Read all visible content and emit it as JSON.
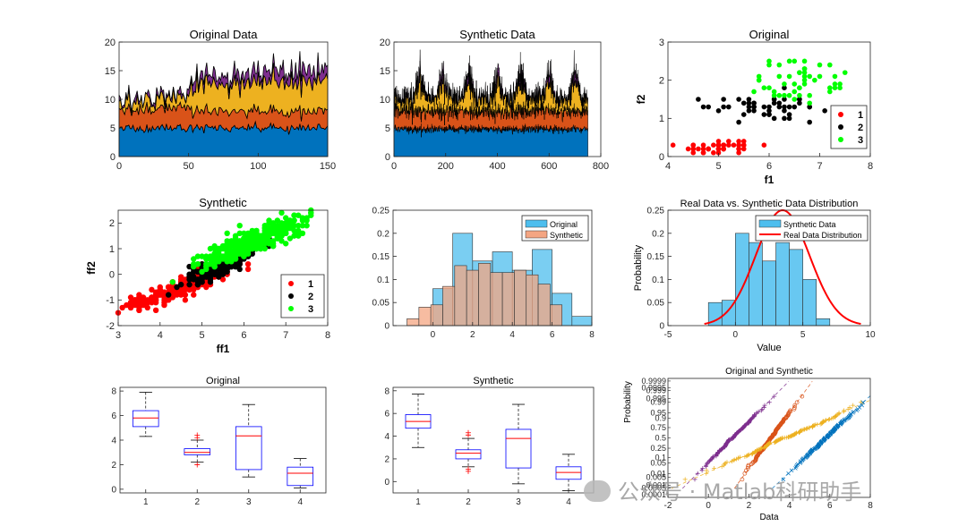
{
  "watermark": "公众号 · Matlab科研助手",
  "colors": {
    "blue": "#0072BD",
    "orange": "#D95319",
    "yellow": "#EDB120",
    "purple": "#7E2F8E",
    "red": "#FF0000",
    "green": "#00FF00",
    "black": "#000000",
    "hist_blue": "#4DBEEE",
    "hist_orange": "#F4A582",
    "box": "#0000FF",
    "median": "#FF0000"
  },
  "chart_data": [
    {
      "id": "p1",
      "type": "area",
      "title": "Original Data",
      "xlim": [
        0,
        150
      ],
      "ylim": [
        0,
        20
      ],
      "xticks": [
        0,
        50,
        100,
        150
      ],
      "yticks": [
        0,
        5,
        10,
        15,
        20
      ],
      "layer_means": [
        {
          "x": [
            0,
            50,
            51,
            150
          ],
          "v": [
            5,
            5,
            5,
            5
          ]
        },
        {
          "x": [
            0,
            50,
            51,
            150
          ],
          "v": [
            3.2,
            3.6,
            3.0,
            2.9
          ]
        },
        {
          "x": [
            0,
            50,
            51,
            150
          ],
          "v": [
            1.5,
            1.6,
            4.4,
            5.6
          ]
        },
        {
          "x": [
            0,
            50,
            51,
            150
          ],
          "v": [
            0.3,
            0.3,
            1.4,
            2.1
          ]
        }
      ],
      "noise": [
        0.4,
        0.4,
        0.8,
        0.6
      ]
    },
    {
      "id": "p2",
      "type": "area",
      "title": "Synthetic Data",
      "xlim": [
        0,
        800
      ],
      "ylim": [
        0,
        20
      ],
      "xticks": [
        0,
        200,
        400,
        600,
        800
      ],
      "yticks": [
        0,
        5,
        10,
        15,
        20
      ],
      "n": 750,
      "layer_means": [
        {
          "x": [
            0,
            750
          ],
          "v": [
            4.8,
            4.8
          ]
        },
        {
          "x": [
            0,
            750
          ],
          "v": [
            3.1,
            3.1
          ]
        },
        {
          "x": [
            0,
            750
          ],
          "v": [
            2.0,
            2.0
          ]
        },
        {
          "x": [
            0,
            750
          ],
          "v": [
            0.2,
            0.2
          ]
        }
      ],
      "bursts": [
        100,
        190,
        290,
        400,
        490,
        600,
        700
      ],
      "noise": [
        0.5,
        0.6,
        0.8,
        0.5
      ]
    },
    {
      "id": "p3",
      "type": "scatter",
      "title": "Original",
      "xlabel": "f1",
      "ylabel": "f2",
      "xlim": [
        4,
        8
      ],
      "ylim": [
        0,
        3
      ],
      "xticks": [
        4,
        5,
        6,
        7,
        8
      ],
      "yticks": [
        0,
        1,
        2,
        3
      ],
      "legend": [
        "1",
        "2",
        "3"
      ],
      "series": [
        {
          "name": "1",
          "cx": 5.0,
          "cy": 0.25,
          "sx": 0.35,
          "sy": 0.1,
          "n": 50
        },
        {
          "name": "2",
          "cx": 5.9,
          "cy": 1.3,
          "sx": 0.5,
          "sy": 0.2,
          "n": 50
        },
        {
          "name": "3",
          "cx": 6.6,
          "cy": 2.0,
          "sx": 0.6,
          "sy": 0.27,
          "n": 50
        }
      ]
    },
    {
      "id": "p4",
      "type": "scatter",
      "title": "Synthetic",
      "xlabel": "ff1",
      "ylabel": "ff2",
      "xlim": [
        3,
        8
      ],
      "ylim": [
        -2,
        2.5
      ],
      "xticks": [
        3,
        4,
        5,
        6,
        7,
        8
      ],
      "yticks": [
        -2,
        -1,
        0,
        1,
        2
      ],
      "legend": [
        "1",
        "2",
        "3"
      ],
      "series": [
        {
          "name": "1",
          "cx": 4.5,
          "cy": -0.5,
          "sx": 0.55,
          "sy": 0.35,
          "n": 260
        },
        {
          "name": "2",
          "cx": 5.4,
          "cy": 0.3,
          "sx": 0.5,
          "sy": 0.4,
          "n": 160
        },
        {
          "name": "3",
          "cx": 6.2,
          "cy": 1.3,
          "sx": 0.6,
          "sy": 0.45,
          "n": 360
        }
      ]
    },
    {
      "id": "p5",
      "type": "histogram",
      "xlim": [
        -2,
        8
      ],
      "ylim": [
        0,
        0.25
      ],
      "xticks": [
        0,
        2,
        4,
        6,
        8
      ],
      "yticks": [
        0,
        0.05,
        0.1,
        0.15,
        0.2,
        0.25
      ],
      "legend": [
        "Original",
        "Synthetic"
      ],
      "original": {
        "edges": [
          0,
          1,
          2,
          3,
          4,
          5,
          6,
          7,
          8
        ],
        "values": [
          0.08,
          0.2,
          0.14,
          0.16,
          0.12,
          0.165,
          0.07,
          0.02
        ]
      },
      "synthetic": {
        "edges": [
          -1.3,
          -0.7,
          -0.1,
          0.5,
          1.1,
          1.7,
          2.3,
          2.9,
          3.5,
          4.1,
          4.7,
          5.3,
          5.9,
          6.5
        ],
        "values": [
          0.015,
          0.04,
          0.045,
          0.085,
          0.13,
          0.12,
          0.135,
          0.115,
          0.115,
          0.12,
          0.11,
          0.09,
          0.045
        ]
      }
    },
    {
      "id": "p6",
      "type": "histogram_fit",
      "title": "Real Data vs. Synthetic Data Distribution",
      "xlabel": "Value",
      "ylabel": "Probability",
      "xlim": [
        -5,
        10
      ],
      "ylim": [
        0,
        0.25
      ],
      "xticks": [
        -5,
        0,
        5,
        10
      ],
      "yticks": [
        0,
        0.05,
        0.1,
        0.15,
        0.2,
        0.25
      ],
      "legend": [
        "Synthetic Data",
        "Real Data Distribution"
      ],
      "edges": [
        -2,
        -1,
        0,
        1,
        2,
        3,
        4,
        5,
        6,
        7
      ],
      "values": [
        0.05,
        0.055,
        0.2,
        0.18,
        0.14,
        0.18,
        0.165,
        0.1,
        0.015
      ],
      "fit": {
        "mean": 3.5,
        "sd": 2.0,
        "scale": 0.25,
        "range": [
          -2.3,
          9.3
        ]
      }
    },
    {
      "id": "p7",
      "type": "boxplot",
      "title": "Original",
      "xlim": [
        0.5,
        4.5
      ],
      "ylim": [
        -0.3,
        8.3
      ],
      "xticks": [
        1,
        2,
        3,
        4
      ],
      "yticks": [
        0,
        2,
        4,
        6,
        8
      ],
      "boxes": [
        {
          "x": 1,
          "min": 4.3,
          "q1": 5.1,
          "med": 5.8,
          "q3": 6.4,
          "max": 7.9,
          "out": []
        },
        {
          "x": 2,
          "min": 2.2,
          "q1": 2.8,
          "med": 3.0,
          "q3": 3.3,
          "max": 4.0,
          "out": [
            4.2,
            4.4,
            2.0
          ]
        },
        {
          "x": 3,
          "min": 1.0,
          "q1": 1.6,
          "med": 4.35,
          "q3": 5.1,
          "max": 6.9,
          "out": []
        },
        {
          "x": 4,
          "min": 0.1,
          "q1": 0.3,
          "med": 1.3,
          "q3": 1.8,
          "max": 2.5,
          "out": []
        }
      ]
    },
    {
      "id": "p8",
      "type": "boxplot",
      "title": "Synthetic",
      "xlim": [
        0.5,
        4.5
      ],
      "ylim": [
        -1.0,
        8.3
      ],
      "xticks": [
        1,
        2,
        3,
        4
      ],
      "yticks": [
        0,
        2,
        4,
        6,
        8
      ],
      "boxes": [
        {
          "x": 1,
          "min": 3.0,
          "q1": 4.7,
          "med": 5.3,
          "q3": 5.9,
          "max": 7.7,
          "out": []
        },
        {
          "x": 2,
          "min": 1.3,
          "q1": 2.0,
          "med": 2.5,
          "q3": 2.8,
          "max": 3.8,
          "out": [
            4.1,
            4.3,
            1.1,
            0.9
          ]
        },
        {
          "x": 3,
          "min": -0.2,
          "q1": 1.2,
          "med": 3.8,
          "q3": 4.6,
          "max": 6.8,
          "out": []
        },
        {
          "x": 4,
          "min": -0.8,
          "q1": 0.2,
          "med": 0.8,
          "q3": 1.3,
          "max": 2.4,
          "out": []
        }
      ]
    },
    {
      "id": "p9",
      "type": "probability_plot",
      "title": "Original and Synthetic",
      "xlabel": "Data",
      "ylabel": "Probability",
      "xlim": [
        -2,
        8
      ],
      "xticks": [
        -2,
        0,
        2,
        4,
        6,
        8
      ],
      "prob_ticks": [
        "0.0001",
        "0.0005",
        "0.001",
        "0.005",
        "0.01",
        "0.05",
        "0.1",
        "0.25",
        "0.5",
        "0.75",
        "0.9",
        "0.95",
        "0.99",
        "0.995",
        "0.999",
        "0.9995",
        "0.9999"
      ],
      "prob_values": [
        0.0001,
        0.0005,
        0.001,
        0.005,
        0.01,
        0.05,
        0.1,
        0.25,
        0.5,
        0.75,
        0.9,
        0.95,
        0.99,
        0.995,
        0.999,
        0.9995,
        0.9999
      ],
      "series": [
        {
          "name": "1",
          "mean": 1.2,
          "sd": 0.75,
          "marker": "+"
        },
        {
          "name": "2",
          "mean": 3.1,
          "sd": 0.55,
          "marker": "o"
        },
        {
          "name": "3",
          "mean": 3.8,
          "sd": 1.7,
          "marker": "+"
        },
        {
          "name": "4",
          "mean": 5.8,
          "sd": 0.8,
          "marker": "x"
        }
      ]
    }
  ]
}
